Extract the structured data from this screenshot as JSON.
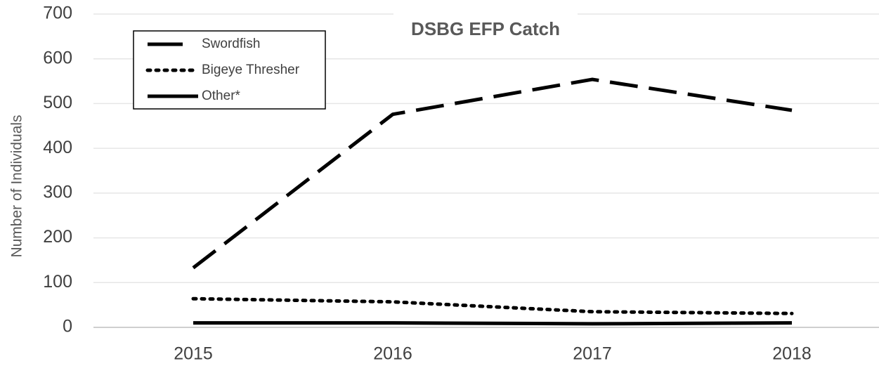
{
  "chart_data": {
    "type": "line",
    "title": "DSBG EFP Catch",
    "y_label": "Number of Individuals",
    "categories": [
      "2015",
      "2016",
      "2017",
      "2018"
    ],
    "series": [
      {
        "name": "Swordfish",
        "color": "#000000",
        "style": "dashed",
        "values": [
          133,
          476,
          554,
          485
        ]
      },
      {
        "name": "Bigeye Thresher",
        "color": "#000000",
        "style": "dotted",
        "values": [
          64,
          57,
          35,
          31
        ]
      },
      {
        "name": "Other*",
        "color": "#000000",
        "style": "solid",
        "values": [
          10,
          10,
          8,
          10
        ]
      }
    ],
    "ylim": [
      0,
      700
    ],
    "yticks": [
      0,
      100,
      200,
      300,
      400,
      500,
      600,
      700
    ],
    "grid": true,
    "legend": "upper left"
  }
}
